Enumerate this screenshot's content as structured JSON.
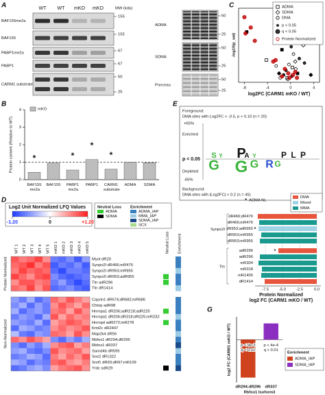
{
  "panel_labels": [
    "A",
    "B",
    "C",
    "D",
    "E",
    "F",
    "G"
  ],
  "blot": {
    "lanes": [
      "WT",
      "WT",
      "mKO",
      "mKO"
    ],
    "mw_title": "MW (kda)",
    "left": [
      {
        "label": "BAF155me2a",
        "mw": [
          "155"
        ]
      },
      {
        "label": "BAF155",
        "mw": [
          "155"
        ]
      },
      {
        "label": "PABP1me2a",
        "mw": [
          "67"
        ]
      },
      {
        "label": "PABP1",
        "mw": [
          "67"
        ]
      },
      {
        "label": "CARM1 substrate",
        "mw": [
          "50",
          "25"
        ]
      }
    ],
    "right": [
      {
        "label": "ADMA",
        "mw": [
          "50",
          "25"
        ]
      },
      {
        "label": "SDMA",
        "mw": [
          "50",
          "25"
        ]
      },
      {
        "label": "Ponceau",
        "mw": [
          "50",
          "25"
        ]
      }
    ]
  },
  "logo": {
    "foreground_title": "Foreground:",
    "foreground": "DMA sites with Log2FC < -0.5, p < 0.10 (n = 20)",
    "top": "+65%",
    "enriched": "Enriched",
    "threshold": "p < 0.05",
    "depleted": "Depleted",
    "bottom": "-65%",
    "background_title": "Background:",
    "background": "DMA sites with |Log2FC| < 0.2 (n = 45)",
    "enriched_letters": [
      "S",
      "Y",
      "P",
      "A",
      "Y",
      "P",
      "L",
      "P"
    ],
    "depleted_letters": [
      "G",
      "G",
      "G",
      "R",
      "G"
    ]
  },
  "chart_data": [
    {
      "type": "bar",
      "ylabel": "Protein content (Relative to WT)",
      "categories": [
        "BAF155 me2a",
        "BAF155",
        "PABP1 me2a",
        "PABP1",
        "CARM1 substrate",
        "ADMA",
        "SDMA"
      ],
      "series": [
        {
          "name": "mKO",
          "color": "#bdbdbd",
          "values": [
            0.42,
            0.95,
            0.55,
            1.15,
            0.6,
            1.0,
            0.97
          ]
        }
      ],
      "significance": [
        "*",
        null,
        "*",
        "*",
        "*",
        null,
        null
      ],
      "reference_line": 1,
      "ylim": [
        0,
        4
      ],
      "yticks": [
        0,
        1,
        2,
        3,
        4
      ]
    },
    {
      "type": "scatter",
      "xlabel": "log2FC (CARM1 mKO / WT)",
      "ylabel": "-log10(p_val)",
      "xlim": [
        -9,
        5
      ],
      "xticks": [
        -8,
        -4,
        0,
        4
      ],
      "ylim": [
        0,
        5
      ],
      "legend_symbols": [
        "p < 0.05",
        "q < 0.05"
      ],
      "series": [
        {
          "name": "ADMA",
          "shape": "square",
          "color": "#000000",
          "x": [
            -7.6,
            -4.2,
            -1.5,
            0.3,
            1.2,
            -0.6
          ],
          "y": [
            3.4,
            1.5,
            2.2,
            1.0,
            0.6,
            0.3
          ]
        },
        {
          "name": "SDMA",
          "shape": "diamond",
          "color": "#000000",
          "x": [
            1.8,
            2.2,
            -2.0,
            0.8,
            3.5
          ],
          "y": [
            2.8,
            2.5,
            0.6,
            1.4,
            0.5
          ]
        },
        {
          "name": "DMA",
          "shape": "circle",
          "color": "#000000",
          "x": [
            -0.8,
            -0.3,
            0.2,
            0.5,
            -1.2,
            0.9,
            1.5,
            -0.5,
            0.1,
            -2.5,
            2.4,
            -1.8
          ],
          "y": [
            0.8,
            1.2,
            0.4,
            1.9,
            0.5,
            0.9,
            1.6,
            0.2,
            2.4,
            1.1,
            1.3,
            0.3
          ]
        },
        {
          "name": "Protein Normalized",
          "shape": "circle",
          "color": "#c00000",
          "x": [
            -8.0,
            -7.8,
            -6.9,
            -6.2,
            -3.0,
            -2.6,
            -1.0,
            -0.4,
            0.4,
            -0.2,
            0.8,
            -1.5,
            1.1
          ],
          "y": [
            4.4,
            3.3,
            3.7,
            2.8,
            1.4,
            1.5,
            0.9,
            0.6,
            0.5,
            0.3,
            0.7,
            0.4,
            0.3
          ]
        }
      ]
    },
    {
      "type": "heatmap",
      "title": "Log2 Unit Normalized LFQ Values",
      "zlim": [
        -1.2,
        1.2
      ],
      "zticks": [
        {
          "value": -1.2,
          "label": "-1.20"
        },
        0,
        {
          "value": 1.2,
          "label": "+1.20"
        }
      ],
      "columns": [
        "WT 1",
        "WT 2",
        "WT 3",
        "WT 4",
        "WT 5",
        "mKO 1",
        "mKO 2",
        "mKO 3",
        "mKO 4",
        "mKO 5"
      ],
      "neutral_loss_title": "Neutral Loss",
      "enrichment_title": "Enrichment",
      "neutral_loss_legend": [
        {
          "name": "ADMA",
          "color": "#33cc33"
        },
        {
          "name": "SDMA",
          "color": "#000000"
        }
      ],
      "enrichment_legend": [
        {
          "name": "ADMA_IAP",
          "color": "#3a7fbf"
        },
        {
          "name": "MMA_IAP",
          "color": "#9ccbe6"
        },
        {
          "name": "SDMA_IAP",
          "color": "#1a4a8a"
        },
        {
          "name": "SCX",
          "color": "#a9dc8c"
        }
      ],
      "row_groups": [
        {
          "name": "Protein Normalized",
          "rows": [
            "Myot dR20",
            "Synpo2l dR466;mR476",
            "Synpo2l dR953;mR955",
            "Synpo2l dR953;adR955",
            "Ttn adR296",
            "Ttn dR1414"
          ],
          "values": [
            [
              0.9,
              0.7,
              0.8,
              1.0,
              0.6,
              -0.8,
              -0.9,
              -0.7,
              -1.0,
              -0.6
            ],
            [
              0.8,
              0.9,
              1.1,
              0.7,
              0.9,
              -1.0,
              -0.8,
              -0.9,
              -0.7,
              -1.0
            ],
            [
              0.7,
              1.0,
              0.8,
              0.9,
              0.8,
              -0.9,
              -1.1,
              -0.8,
              -0.8,
              -0.9
            ],
            [
              1.0,
              0.8,
              0.6,
              0.9,
              1.0,
              -0.7,
              -0.9,
              -1.0,
              -0.9,
              -0.8
            ],
            [
              0.6,
              0.9,
              0.9,
              0.7,
              0.8,
              -0.8,
              -0.6,
              -0.9,
              -1.1,
              -0.9
            ],
            [
              0.8,
              0.7,
              1.0,
              0.6,
              0.9,
              -0.9,
              -0.8,
              -0.7,
              -0.9,
              -1.0
            ]
          ],
          "neutral_loss": [
            null,
            null,
            null,
            "ADMA",
            "ADMA",
            null
          ],
          "enrichment": [
            "ADMA_IAP",
            "ADMA_IAP",
            "MMA_IAP",
            "ADMA_IAP",
            "ADMA_IAP",
            "MMA_IAP"
          ]
        },
        {
          "name": "Non-Normalized",
          "rows": [
            "Caprin1 dR674;dR682;mR686",
            "Chtop adR98",
            "Hnrnpa1 dR206;adR218;adR225",
            "Hnrnpa1 dR206;dR218;dR225;mR232",
            "Hnrnpd adR272;mR278",
            "Kmt2c dR2447",
            "Map2k4 dR56",
            "Rbfox1 dR294;dR296",
            "Rbfox1 dR337",
            "Sarnd4b dR595",
            "Sos2 dR1322",
            "Srsf1 dR93;dR97;mR109",
            "Yrdc sdR29"
          ],
          "values": [
            [
              -0.6,
              -0.8,
              -0.5,
              -0.9,
              -0.7,
              0.8,
              0.6,
              0.9,
              0.7,
              0.5
            ],
            [
              -0.7,
              -0.5,
              -0.9,
              -0.6,
              -0.8,
              0.6,
              0.9,
              0.7,
              0.5,
              0.8
            ],
            [
              -0.5,
              -0.9,
              -0.7,
              -0.6,
              -0.8,
              0.7,
              0.8,
              0.5,
              0.9,
              0.6
            ],
            [
              -0.8,
              -0.6,
              -0.7,
              -0.9,
              -0.5,
              0.9,
              0.5,
              0.8,
              0.6,
              0.7
            ],
            [
              -0.6,
              -0.7,
              -0.8,
              -0.5,
              -0.9,
              0.5,
              0.7,
              0.9,
              0.8,
              0.6
            ],
            [
              -0.9,
              -0.5,
              -0.6,
              -0.8,
              -0.7,
              0.6,
              0.8,
              0.6,
              0.7,
              0.9
            ],
            [
              -0.4,
              -0.8,
              -0.9,
              -0.6,
              -0.7,
              0.8,
              0.7,
              0.5,
              0.9,
              0.6
            ],
            [
              0.8,
              0.6,
              0.9,
              0.7,
              0.5,
              -0.7,
              -0.9,
              -0.6,
              -0.8,
              -0.5
            ],
            [
              -0.7,
              -0.9,
              -0.6,
              -0.8,
              -0.5,
              0.6,
              0.8,
              0.9,
              0.5,
              0.7
            ],
            [
              -0.6,
              -0.5,
              -0.8,
              -0.9,
              -0.7,
              0.9,
              0.6,
              0.7,
              0.8,
              0.5
            ],
            [
              -0.8,
              -0.7,
              -0.5,
              -0.6,
              -0.9,
              0.7,
              0.5,
              0.8,
              0.6,
              0.9
            ],
            [
              -0.5,
              -0.6,
              -0.9,
              -0.7,
              -0.8,
              0.8,
              0.9,
              0.6,
              0.5,
              0.7
            ],
            [
              -0.9,
              -0.8,
              -0.6,
              -0.5,
              -0.7,
              0.5,
              0.7,
              0.8,
              0.9,
              0.6
            ]
          ],
          "neutral_loss": [
            null,
            null,
            "ADMA",
            null,
            "ADMA",
            null,
            null,
            null,
            null,
            null,
            null,
            null,
            "SDMA"
          ],
          "enrichment": [
            "ADMA_IAP",
            "ADMA_IAP",
            "ADMA_IAP",
            "MMA_IAP",
            "ADMA_IAP",
            "ADMA_IAP",
            "MMA_IAP",
            "ADMA_IAP",
            "SDMA_IAP",
            "MMA_IAP",
            "ADMA_IAP",
            "ADMA_IAP",
            "SDMA_IAP"
          ]
        }
      ]
    },
    {
      "type": "hbar",
      "xlabel": [
        "Protein Normalized",
        "log2 FC (CARM1 mKO / WT)"
      ],
      "groups": [
        {
          "name": "Synpo2l",
          "categories": [
            "dR466;dR476",
            "dR466;mR476",
            "dR953;adR955",
            "dR953;mR955",
            "dR953;mR955"
          ]
        },
        {
          "name": "Ttn",
          "categories": [
            "adR296",
            "adR296",
            "mR304",
            "mR318",
            "mR1405",
            "dR1414"
          ]
        }
      ],
      "series": [
        {
          "name": "DMA",
          "color": "#e8553d",
          "values": [
            -8.6,
            null,
            null,
            null,
            null,
            -5.6,
            null,
            null,
            null,
            null,
            -7.6
          ]
        },
        {
          "name": "Mixed",
          "color": "#9fd3e6",
          "values": [
            null,
            null,
            -8.5,
            null,
            null,
            null,
            null,
            null,
            null,
            null,
            null
          ]
        },
        {
          "name": "MMA",
          "color": "#1a9a8f",
          "values": [
            null,
            -8.4,
            null,
            -8.1,
            -8.3,
            null,
            -8.3,
            -8.5,
            -8.0,
            -8.1,
            null
          ]
        }
      ],
      "nl_symbol": "*",
      "nl_label": "ADMA NL",
      "nl_markers": [
        null,
        null,
        "*",
        null,
        null,
        "*",
        null,
        null,
        null,
        null,
        null
      ],
      "xlim": [
        -9,
        0.6
      ],
      "xticks": [
        -7.5,
        {
          "value": -5,
          "label": "-5.0"
        },
        -2.5,
        {
          "value": 0,
          "label": "0.0"
        }
      ]
    },
    {
      "type": "bar",
      "ylabel": "log2 FC (CARM1 mKO / WT)",
      "xlabel": "Rbfox1 Isoform3",
      "categories": [
        "dR294;dR296",
        "dR337"
      ],
      "legend_title": "Enrichment",
      "series": [
        {
          "name": "ADMA_IAP",
          "color": "#d0411e",
          "values": [
            -7.5,
            null
          ]
        },
        {
          "name": "SDMA_IAP",
          "color": "#8a2fbf",
          "values": [
            null,
            3.2
          ]
        }
      ],
      "annotations": [
        [
          "p < 9e-3",
          "q < 0.01"
        ],
        [
          "p < 4e-4",
          "q < 0.01"
        ]
      ],
      "ylim": [
        -8.5,
        4.5
      ]
    }
  ]
}
